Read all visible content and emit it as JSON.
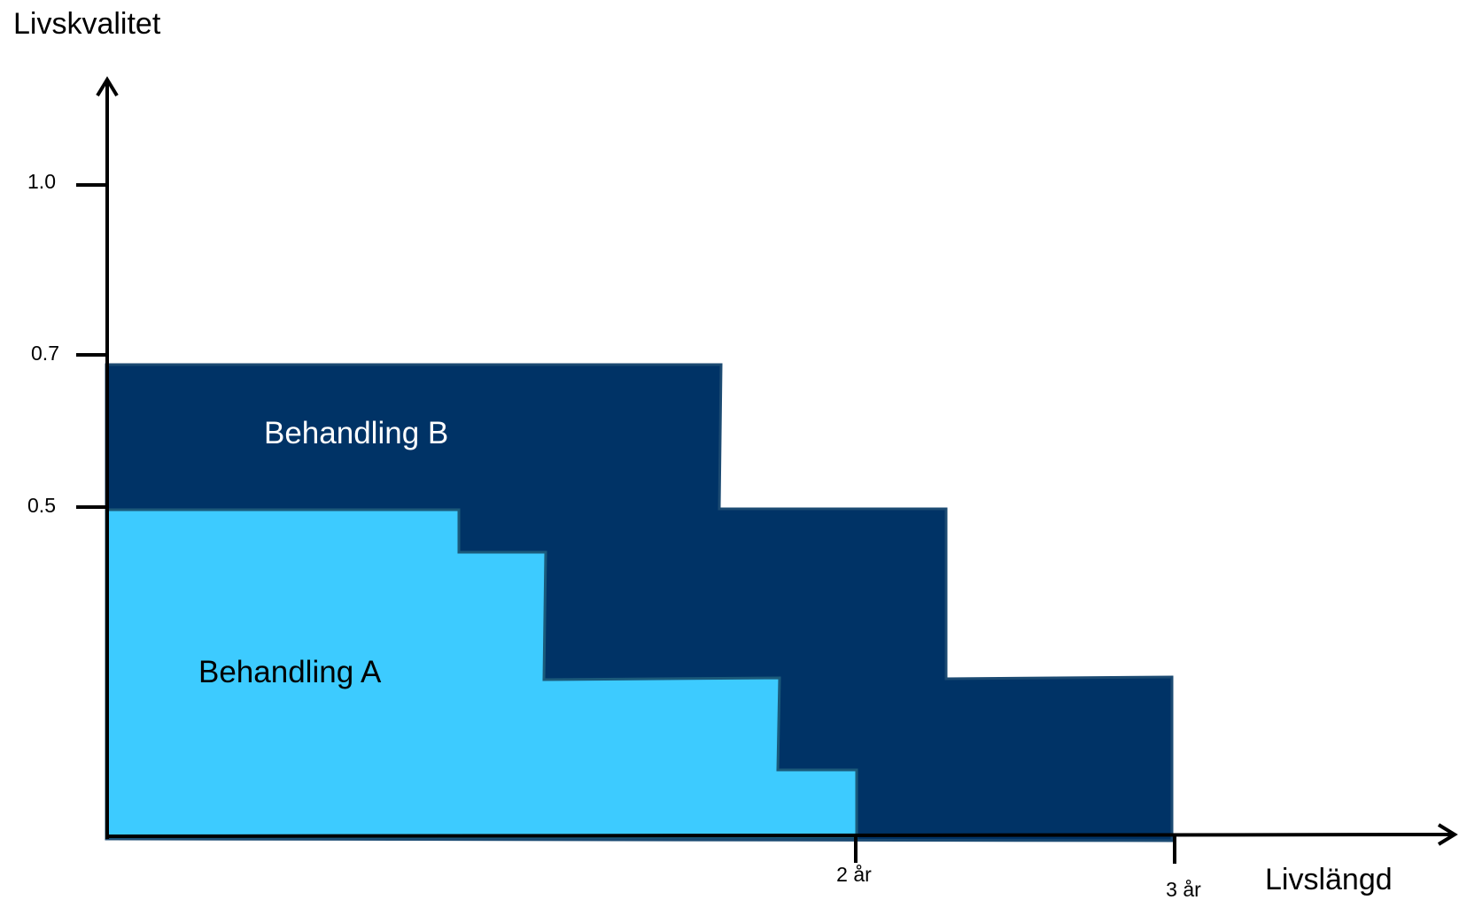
{
  "y_axis_title": "Livskvalitet",
  "x_axis_title": "Livslängd",
  "y_ticks": [
    {
      "label": "1.0",
      "value": 1.0
    },
    {
      "label": "0.7",
      "value": 0.7
    },
    {
      "label": "0.5",
      "value": 0.5
    }
  ],
  "x_ticks": [
    {
      "label": "2 år",
      "value": 2
    },
    {
      "label": "3 år",
      "value": 3
    }
  ],
  "regions": {
    "b": {
      "label": "Behandling B",
      "color": "#003366"
    },
    "a": {
      "label": "Behandling A",
      "color": "#3dcbff"
    }
  }
}
